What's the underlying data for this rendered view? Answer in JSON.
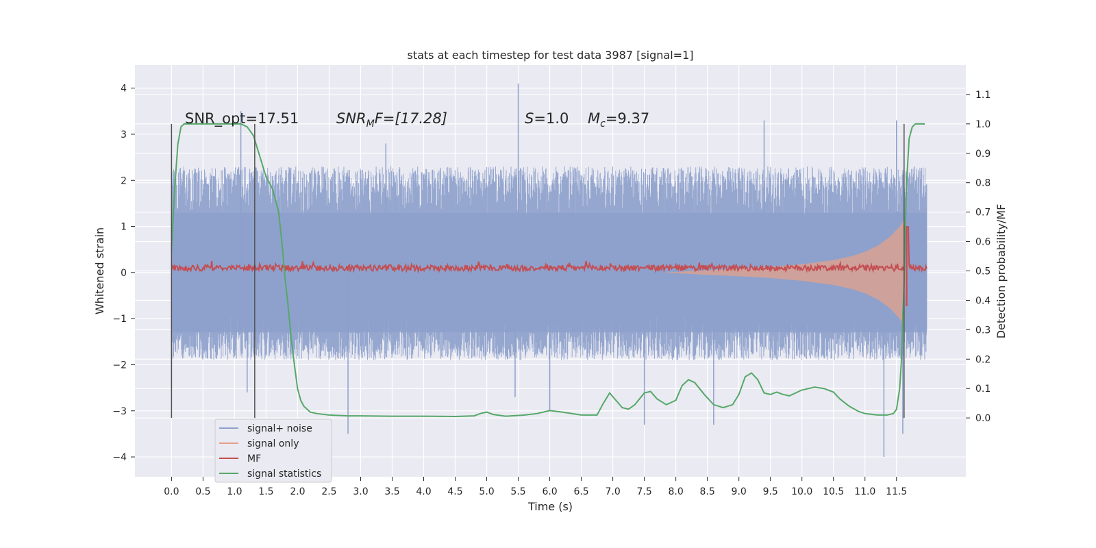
{
  "chart_data": {
    "type": "line",
    "title": "stats at each timestep for test data 3987 [signal=1]",
    "xlabel": "Time (s)",
    "ylabel": "Whitened strain",
    "y2label": "Detection probability/MF",
    "xlim": [
      -0.58,
      12.6
    ],
    "ylim": [
      -4.43,
      4.5
    ],
    "y2lim": [
      -0.2,
      1.2
    ],
    "x_ticks": [
      "0.0",
      "0.5",
      "1.0",
      "1.5",
      "2.0",
      "2.5",
      "3.0",
      "3.5",
      "4.0",
      "4.5",
      "5.0",
      "5.5",
      "6.0",
      "6.5",
      "7.0",
      "7.5",
      "8.0",
      "8.5",
      "9.0",
      "9.5",
      "10.0",
      "10.5",
      "11.0",
      "11.5"
    ],
    "y_ticks": [
      "4",
      "3",
      "2",
      "1",
      "0",
      "−1",
      "−2",
      "−3",
      "−4"
    ],
    "y2_ticks": [
      "1.1",
      "1.0",
      "0.9",
      "0.8",
      "0.7",
      "0.6",
      "0.5",
      "0.4",
      "0.3",
      "0.2",
      "0.1",
      "0.0"
    ],
    "grid": true,
    "legend_position": "lower-left",
    "annotations": {
      "snr_opt": "SNR_opt=17.51",
      "snr_mf_base": "SNR",
      "snr_mf_sub": "M",
      "snr_mf_rest": "F=[17.28]",
      "s_sym": "S",
      "s_val": "=1.0",
      "mc_sym": "M",
      "mc_sub": "c",
      "mc_val": "=9.37"
    },
    "vertical_markers": [
      0.0,
      1.32,
      11.62
    ],
    "series": [
      {
        "name": "signal+ noise",
        "color": "#8da0cb",
        "axis": "left",
        "band": {
          "x_start": 0.0,
          "x_end": 11.98,
          "typical_min": -1.9,
          "typical_max": 2.3
        },
        "spikes": [
          [
            0.0,
            1.8
          ],
          [
            0.0,
            -2.5
          ],
          [
            1.1,
            3.5
          ],
          [
            1.2,
            -2.6
          ],
          [
            2.8,
            -3.5
          ],
          [
            3.4,
            2.8
          ],
          [
            5.5,
            4.1
          ],
          [
            5.45,
            -2.7
          ],
          [
            8.6,
            -3.3
          ],
          [
            9.4,
            3.3
          ],
          [
            11.3,
            -4.0
          ],
          [
            11.5,
            3.3
          ],
          [
            11.6,
            -3.5
          ],
          [
            7.5,
            -3.3
          ],
          [
            6.0,
            -3.0
          ]
        ]
      },
      {
        "name": "signal only",
        "color": "#e5a088",
        "axis": "left",
        "envelope": [
          [
            7.8,
            0.0
          ],
          [
            8.5,
            0.05
          ],
          [
            9.0,
            0.08
          ],
          [
            9.5,
            0.12
          ],
          [
            10.0,
            0.18
          ],
          [
            10.5,
            0.27
          ],
          [
            10.8,
            0.36
          ],
          [
            11.0,
            0.45
          ],
          [
            11.2,
            0.58
          ],
          [
            11.4,
            0.78
          ],
          [
            11.55,
            1.0
          ],
          [
            11.62,
            1.15
          ],
          [
            11.65,
            0.0
          ]
        ]
      },
      {
        "name": "MF",
        "color": "#c44e52",
        "axis": "right",
        "baseline": 0.51,
        "peak_x": 11.66,
        "peak_y": 0.65
      },
      {
        "name": "signal statistics",
        "color": "#55a868",
        "axis": "right",
        "x": [
          0.0,
          0.05,
          0.1,
          0.15,
          0.2,
          0.3,
          0.5,
          0.8,
          1.0,
          1.1,
          1.2,
          1.3,
          1.4,
          1.5,
          1.6,
          1.7,
          1.75,
          1.8,
          1.85,
          1.9,
          1.95,
          2.0,
          2.05,
          2.1,
          2.2,
          2.3,
          2.5,
          2.8,
          3.0,
          3.5,
          4.0,
          4.5,
          4.8,
          4.9,
          5.0,
          5.1,
          5.3,
          5.6,
          5.8,
          6.0,
          6.2,
          6.5,
          6.75,
          6.85,
          6.95,
          7.05,
          7.15,
          7.25,
          7.35,
          7.5,
          7.6,
          7.7,
          7.85,
          8.0,
          8.1,
          8.2,
          8.3,
          8.45,
          8.6,
          8.75,
          8.9,
          9.0,
          9.1,
          9.2,
          9.3,
          9.4,
          9.5,
          9.6,
          9.7,
          9.8,
          10.0,
          10.2,
          10.35,
          10.5,
          10.6,
          10.75,
          10.9,
          11.0,
          11.2,
          11.35,
          11.45,
          11.5,
          11.55,
          11.58,
          11.6,
          11.62,
          11.64,
          11.66,
          11.7,
          11.75,
          11.8,
          11.9,
          11.95
        ],
        "y": [
          0.57,
          0.78,
          0.93,
          0.99,
          1.0,
          1.0,
          1.0,
          1.0,
          1.0,
          1.0,
          0.99,
          0.96,
          0.89,
          0.82,
          0.78,
          0.7,
          0.6,
          0.48,
          0.38,
          0.27,
          0.18,
          0.1,
          0.06,
          0.04,
          0.02,
          0.015,
          0.01,
          0.007,
          0.007,
          0.006,
          0.006,
          0.005,
          0.007,
          0.015,
          0.02,
          0.012,
          0.006,
          0.01,
          0.015,
          0.025,
          0.02,
          0.01,
          0.01,
          0.05,
          0.085,
          0.06,
          0.035,
          0.03,
          0.045,
          0.085,
          0.09,
          0.065,
          0.045,
          0.06,
          0.11,
          0.13,
          0.12,
          0.08,
          0.045,
          0.035,
          0.045,
          0.08,
          0.14,
          0.153,
          0.13,
          0.085,
          0.08,
          0.088,
          0.08,
          0.075,
          0.095,
          0.105,
          0.1,
          0.088,
          0.065,
          0.04,
          0.022,
          0.015,
          0.01,
          0.01,
          0.015,
          0.03,
          0.1,
          0.2,
          0.35,
          0.45,
          0.65,
          0.8,
          0.95,
          0.99,
          1.0,
          1.0,
          1.0
        ]
      }
    ]
  }
}
